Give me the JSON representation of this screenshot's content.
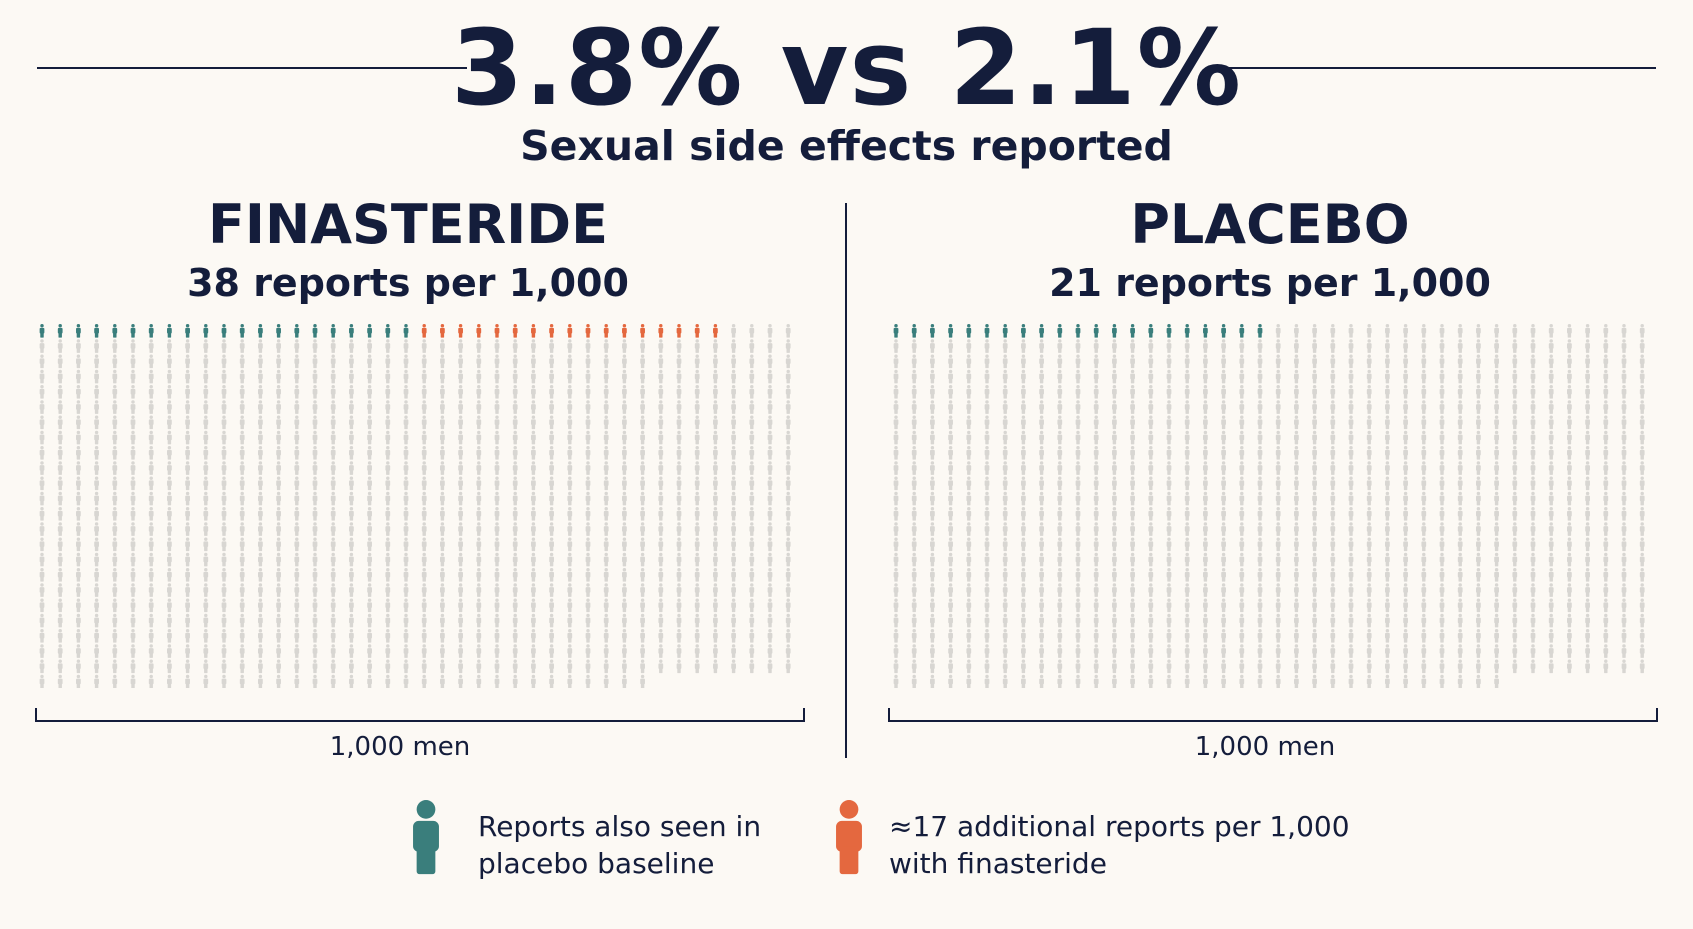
{
  "header": {
    "headline": "3.8% vs 2.1%",
    "subtitle": "Sexual side effects reported"
  },
  "groups": [
    {
      "name": "FINASTERIDE",
      "subtitle": "38 reports per 1,000",
      "population_label": "1,000 men"
    },
    {
      "name": "PLACEBO",
      "subtitle": "21 reports per 1,000",
      "population_label": "1,000 men"
    }
  ],
  "legend": [
    {
      "line1": "Reports also seen in",
      "line2": "placebo baseline",
      "color": "#3a7e7c"
    },
    {
      "line1": "≈17 additional reports per 1,000",
      "line2": "with finasteride",
      "color": "#e4683f"
    }
  ],
  "colors": {
    "baseline": "#3a7e7c",
    "additional": "#e4683f",
    "unaffected": "#d8d6d2",
    "text": "#141d3b",
    "background": "#fcf9f4"
  },
  "chart_data": [
    {
      "type": "waffle",
      "title": "FINASTERIDE",
      "subtitle": "38 reports per 1,000",
      "total": 1000,
      "series": [
        {
          "name": "Reports also seen in placebo baseline",
          "value": 21,
          "color": "#3a7e7c"
        },
        {
          "name": "≈17 additional reports per 1,000 with finasteride",
          "value": 17,
          "color": "#e4683f"
        },
        {
          "name": "",
          "value": 962,
          "color": "#d8d6d2"
        }
      ],
      "xlabel": "1,000 men"
    },
    {
      "type": "waffle",
      "title": "PLACEBO",
      "subtitle": "21 reports per 1,000",
      "total": 1000,
      "series": [
        {
          "name": "Reports also seen in placebo baseline",
          "value": 21,
          "color": "#3a7e7c"
        },
        {
          "name": "",
          "value": 979,
          "color": "#d8d6d2"
        }
      ],
      "xlabel": "1,000 men"
    }
  ]
}
